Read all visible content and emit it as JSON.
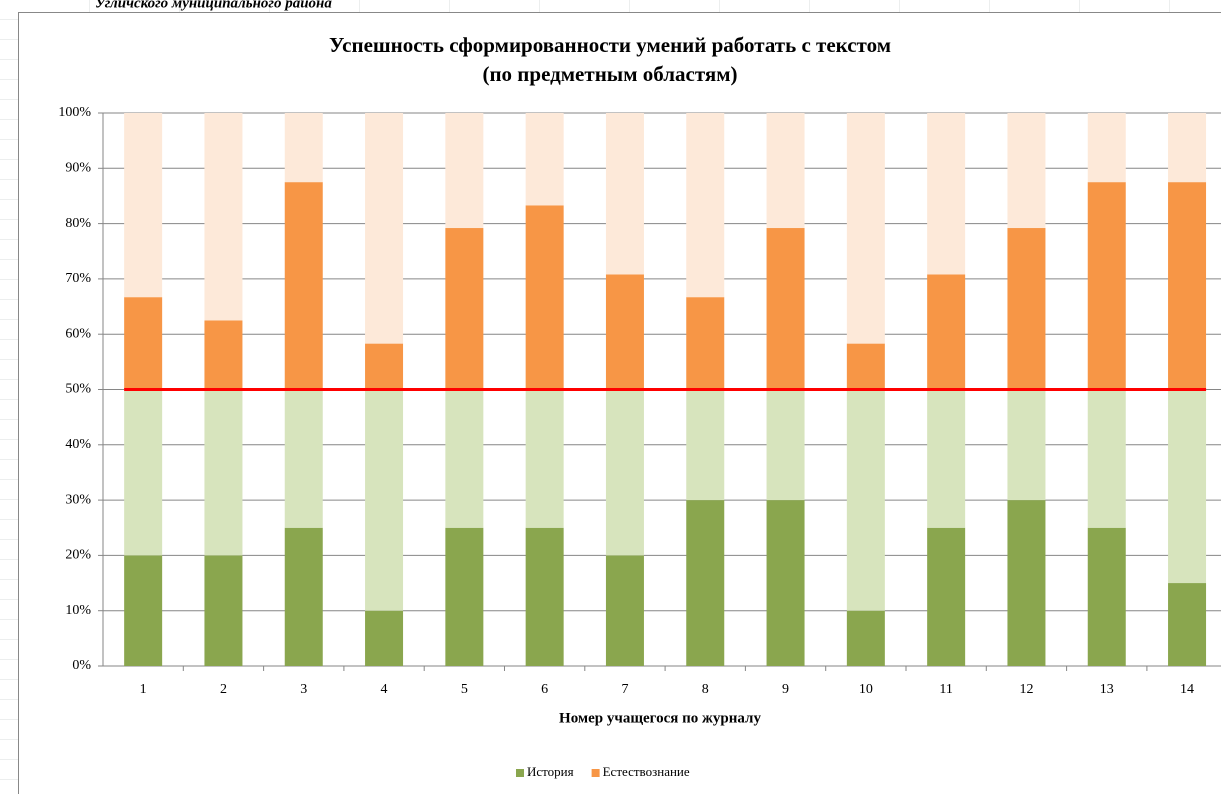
{
  "header_text": "Угличского муниципального района",
  "chart_data": {
    "type": "stacked_bar",
    "title": "Успешность сформированности умений работать с текстом",
    "subtitle": "(по предметным областям)",
    "x_label": "Номер учащегося по журналу",
    "categories": [
      "1",
      "2",
      "3",
      "4",
      "5",
      "6",
      "7",
      "8",
      "9",
      "10",
      "11",
      "12",
      "13",
      "14"
    ],
    "series": [
      {
        "name": "История",
        "color": "#8aa64e",
        "values": [
          20,
          20,
          25,
          10,
          25,
          25,
          20,
          30,
          30,
          10,
          25,
          30,
          25,
          15
        ]
      },
      {
        "color": "#d7e4bd",
        "values": [
          30,
          30,
          25,
          40,
          25,
          25,
          30,
          20,
          20,
          40,
          25,
          20,
          25,
          35
        ]
      },
      {
        "name": "Естествознание",
        "color": "#f79646",
        "values": [
          16.7,
          12.5,
          37.5,
          8.3,
          29.2,
          33.3,
          20.8,
          16.7,
          29.2,
          8.3,
          20.8,
          29.2,
          37.5,
          37.5
        ]
      },
      {
        "color": "#fde9d9",
        "values": [
          33.3,
          37.5,
          12.5,
          41.7,
          20.8,
          16.7,
          29.2,
          33.3,
          20.8,
          41.7,
          29.2,
          20.8,
          12.5,
          12.5
        ]
      }
    ],
    "hline": {
      "value": 50,
      "color": "#ff0000"
    },
    "ylim": [
      0,
      100
    ],
    "yticks": [
      {
        "value": 0,
        "label": "0%"
      },
      {
        "value": 10,
        "label": "10%"
      },
      {
        "value": 20,
        "label": "20%"
      },
      {
        "value": 30,
        "label": "30%"
      },
      {
        "value": 40,
        "label": "40%"
      },
      {
        "value": 50,
        "label": "50%"
      },
      {
        "value": 60,
        "label": "60%"
      },
      {
        "value": 70,
        "label": "70%"
      },
      {
        "value": 80,
        "label": "80%"
      },
      {
        "value": 90,
        "label": "90%"
      },
      {
        "value": 100,
        "label": "100%"
      }
    ],
    "grid": true,
    "legend": "bottom"
  }
}
